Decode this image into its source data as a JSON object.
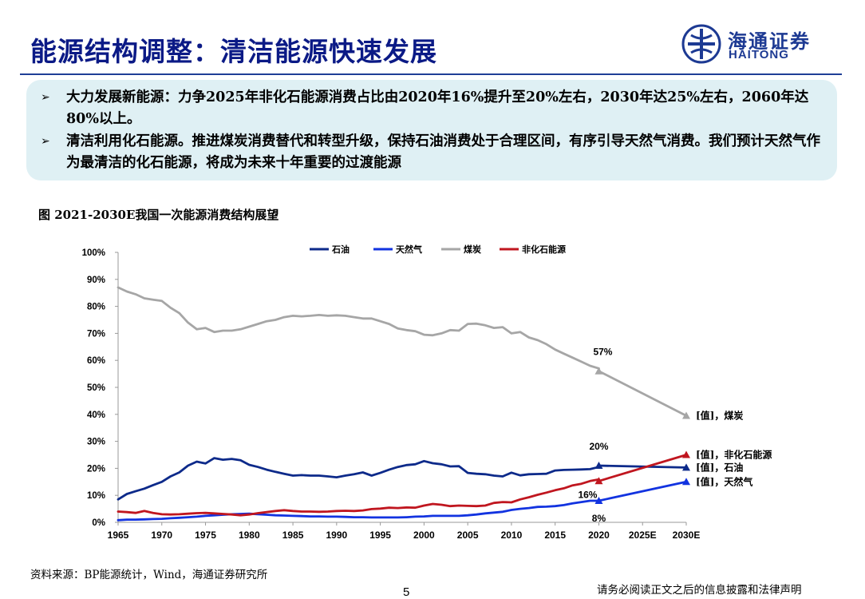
{
  "header": {
    "title": "能源结构调整：清洁能源快速发展",
    "logo_cn": "海通证券",
    "logo_en": "HAITONG"
  },
  "summary": {
    "bullet_marker": "➢",
    "bullets": [
      "大力发展新能源：力争2025年非化石能源消费占比由2020年16%提升至20%左右，2030年达25%左右，2060年达80%以上。",
      "清洁利用化石能源。推进煤炭消费替代和转型升级，保持石油消费处于合理区间，有序引导天然气消费。我们预计天然气作为最清洁的化石能源，将成为未来十年重要的过渡能源"
    ]
  },
  "chart_title": "图 2021-2030E我国一次能源消费结构展望",
  "chart_data": {
    "type": "line",
    "title": "图 2021-2030E我国一次能源消费结构展望",
    "xlabel": "",
    "ylabel": "",
    "ylim": [
      0,
      100
    ],
    "yticks": [
      "0%",
      "10%",
      "20%",
      "30%",
      "40%",
      "50%",
      "60%",
      "70%",
      "80%",
      "90%",
      "100%"
    ],
    "xticks": [
      "1965",
      "1970",
      "1975",
      "1980",
      "1985",
      "1990",
      "1995",
      "2000",
      "2005",
      "2010",
      "2015",
      "2020",
      "2025E",
      "2030E"
    ],
    "legend_position": "top",
    "x": [
      1965,
      1966,
      1967,
      1968,
      1969,
      1970,
      1971,
      1972,
      1973,
      1974,
      1975,
      1976,
      1977,
      1978,
      1979,
      1980,
      1981,
      1982,
      1983,
      1984,
      1985,
      1986,
      1987,
      1988,
      1989,
      1990,
      1991,
      1992,
      1993,
      1994,
      1995,
      1996,
      1997,
      1998,
      1999,
      2000,
      2001,
      2002,
      2003,
      2004,
      2005,
      2006,
      2007,
      2008,
      2009,
      2010,
      2011,
      2012,
      2013,
      2014,
      2015,
      2016,
      2017,
      2018,
      2019,
      2020
    ],
    "series": [
      {
        "name": "石油",
        "color": "#0d2a8a",
        "values": [
          8.5,
          10.5,
          11.5,
          12.5,
          13.8,
          15,
          17,
          18.5,
          21,
          22.5,
          21.8,
          23.8,
          23.2,
          23.5,
          23,
          21.3,
          20.5,
          19.5,
          18.7,
          18,
          17.3,
          17.5,
          17.3,
          17.3,
          17,
          16.7,
          17.3,
          17.8,
          18.5,
          17.3,
          18.3,
          19.5,
          20.5,
          21.2,
          21.5,
          22.7,
          21.9,
          21.5,
          20.7,
          20.8,
          18.3,
          18,
          17.8,
          17.3,
          17,
          18.4,
          17.4,
          17.8,
          17.9,
          18,
          19.2,
          19.4,
          19.5,
          19.6,
          19.7,
          20.5
        ],
        "projection_x": [
          2020,
          2030
        ],
        "projection_values": [
          21,
          20.3
        ],
        "end_label": "[值]，石油",
        "point_label": "20%"
      },
      {
        "name": "天然气",
        "color": "#1233e0",
        "values": [
          0.8,
          1,
          1,
          1.1,
          1.2,
          1.3,
          1.5,
          1.7,
          1.9,
          2.1,
          2.4,
          2.6,
          2.8,
          3,
          3.1,
          3.2,
          3,
          2.8,
          2.6,
          2.5,
          2.4,
          2.3,
          2.2,
          2.2,
          2.1,
          2.1,
          2,
          1.9,
          1.9,
          1.8,
          1.8,
          1.8,
          1.8,
          1.9,
          2.1,
          2.2,
          2.4,
          2.4,
          2.4,
          2.4,
          2.6,
          2.9,
          3.3,
          3.6,
          3.9,
          4.6,
          5,
          5.3,
          5.7,
          5.8,
          6,
          6.4,
          7,
          7.5,
          8,
          8
        ],
        "projection_x": [
          2020,
          2030
        ],
        "projection_values": [
          8,
          15
        ],
        "end_label": "[值]，天然气",
        "point_label": "8%"
      },
      {
        "name": "煤炭",
        "color": "#a6a6a6",
        "values": [
          87,
          85.5,
          84.5,
          83,
          82.5,
          82,
          79.5,
          77.5,
          74,
          71.5,
          72,
          70.5,
          71,
          71,
          71.5,
          72.5,
          73.5,
          74.5,
          75,
          76,
          76.5,
          76.3,
          76.5,
          76.8,
          76.5,
          76.7,
          76.5,
          76,
          75.5,
          75.5,
          74.5,
          73.5,
          71.8,
          71.2,
          70.8,
          69.5,
          69.3,
          70,
          71.2,
          71,
          73.5,
          73.6,
          73,
          72,
          72.3,
          70,
          70.5,
          68.5,
          67.5,
          66,
          64,
          62.5,
          61,
          59.5,
          58,
          57
        ],
        "projection_x": [
          2020,
          2030
        ],
        "projection_values": [
          56,
          39.5
        ],
        "end_label": "[值]，煤炭",
        "point_label": "57%"
      },
      {
        "name": "非化石能源",
        "color": "#c0161f",
        "values": [
          4,
          3.8,
          3.5,
          4.2,
          3.5,
          3,
          2.9,
          3,
          3.2,
          3.4,
          3.5,
          3.3,
          3.1,
          2.9,
          2.6,
          2.9,
          3.4,
          3.8,
          4.2,
          4.5,
          4.2,
          4,
          4,
          3.9,
          4,
          4.2,
          4.3,
          4.2,
          4.4,
          4.9,
          5.1,
          5.4,
          5.3,
          5.5,
          5.4,
          6.2,
          6.8,
          6.5,
          6,
          6.2,
          6.1,
          6,
          6.2,
          7.2,
          7.5,
          7.4,
          8.5,
          9.3,
          10.2,
          11,
          11.9,
          12.6,
          13.7,
          14.3,
          15.3,
          15.9
        ],
        "projection_x": [
          2020,
          2030
        ],
        "projection_values": [
          15.3,
          25
        ],
        "end_label": "[值]，非化石能源",
        "point_label": "16%"
      }
    ]
  },
  "footer": {
    "source": "资料来源：BP能源统计，Wind，海通证券研究所",
    "page_number": "5",
    "disclaimer": "请务必阅读正文之后的信息披露和法律声明"
  }
}
